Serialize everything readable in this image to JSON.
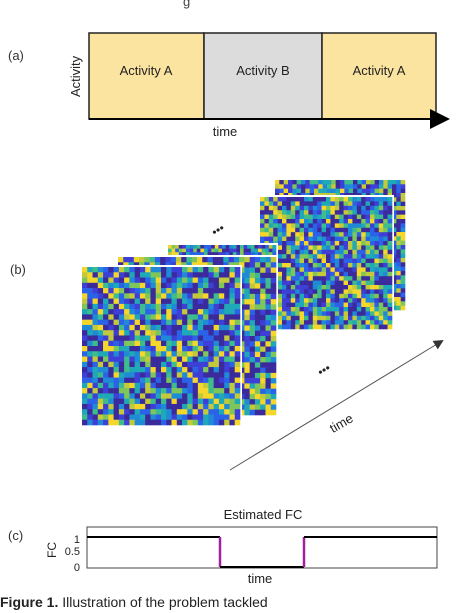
{
  "header_snippet": "g",
  "panel_labels": {
    "a": "(a)",
    "b": "(b)",
    "c": "(c)"
  },
  "panel_a": {
    "ylabel": "Activity",
    "xlabel": "time",
    "segments": [
      {
        "label": "Activity A",
        "color": "#fbe3a0"
      },
      {
        "label": "Activity B",
        "color": "#dcdcdc"
      },
      {
        "label": "Activity A",
        "color": "#fbe3a0"
      }
    ]
  },
  "panel_b": {
    "ellipsis_top": "•••",
    "ellipsis_bottom": "•••",
    "arrow_label": "time",
    "matrix_size": 30,
    "frame_count": 5
  },
  "panel_c": {
    "title": "Estimated FC",
    "ylabel": "FC",
    "xlabel": "time",
    "yticks": [
      "1",
      "0.5",
      "0"
    ]
  },
  "chart_data": {
    "type": "line",
    "title": "Estimated FC",
    "xlabel": "time",
    "ylabel": "FC",
    "ylim": [
      0,
      1
    ],
    "series": [
      {
        "x": [
          0,
          0.38,
          0.38,
          0.62,
          0.62,
          1.0
        ],
        "y": [
          1,
          1,
          0,
          0,
          1,
          1
        ]
      }
    ],
    "transition_color": "#a020a0"
  },
  "caption": {
    "bold": "Figure 1.",
    "text": " Illustration of the problem tackled"
  }
}
